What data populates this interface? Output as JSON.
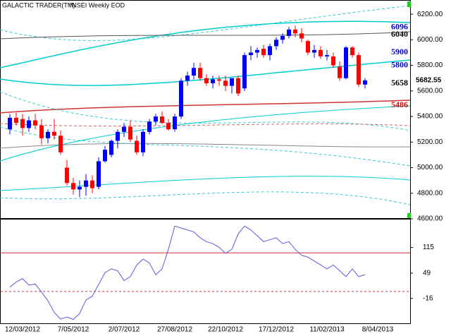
{
  "chart_data": [
    {
      "type": "candlestick",
      "title": "GALACTIC TRADER(TM)",
      "subtitle": "^NSEI Weekly EOD",
      "categories": [
        null,
        null,
        "12/03/2012",
        null,
        null,
        null,
        null,
        null,
        null,
        null,
        "7/05/2012",
        null,
        null,
        null,
        null,
        null,
        null,
        null,
        "2/07/2012",
        null,
        null,
        null,
        null,
        null,
        null,
        null,
        "27/08/2012",
        null,
        null,
        null,
        null,
        null,
        null,
        null,
        "22/10/2012",
        null,
        null,
        null,
        null,
        null,
        null,
        null,
        "17/12/2012",
        null,
        null,
        null,
        null,
        null,
        null,
        null,
        "11/02/2013",
        null,
        null,
        null,
        null,
        null,
        null,
        null,
        "8/04/2013",
        null,
        null,
        null,
        null
      ],
      "open": [
        5300,
        5390,
        5380,
        5310,
        5370,
        5330,
        5230,
        5280,
        5250,
        5000,
        4880,
        4830,
        4850,
        4900,
        4850,
        5050,
        5100,
        5210,
        5280,
        5320,
        5210,
        5120,
        5280,
        5360,
        5400,
        5350,
        5300,
        5400,
        5680,
        5720,
        5780,
        5700,
        5660,
        5690,
        5680,
        5640,
        5700,
        5620,
        5880,
        5900,
        5930,
        5880,
        5950,
        6000,
        6030,
        6080,
        6050,
        5990,
        5900,
        5920,
        5870,
        5870,
        5790,
        5700,
        5940,
        5880,
        5650,
        null,
        null,
        null,
        null,
        null,
        null
      ],
      "high": [
        5420,
        5430,
        5420,
        5400,
        5420,
        5380,
        5300,
        5380,
        5290,
        5060,
        4920,
        4900,
        4950,
        4940,
        5080,
        5170,
        5220,
        5300,
        5350,
        5370,
        5250,
        5300,
        5380,
        5420,
        5440,
        5380,
        5420,
        5700,
        5750,
        5820,
        5820,
        5730,
        5720,
        5720,
        5720,
        5700,
        5720,
        5900,
        5950,
        5940,
        5960,
        5970,
        6020,
        6050,
        6100,
        6110,
        6090,
        6000,
        5960,
        5950,
        5920,
        5900,
        5830,
        5950,
        5950,
        5900,
        5700,
        null,
        null,
        null,
        null,
        null,
        null
      ],
      "low": [
        5260,
        5330,
        5250,
        5280,
        5300,
        5180,
        5190,
        5220,
        5100,
        4860,
        4790,
        4770,
        4780,
        4800,
        4830,
        5040,
        5080,
        5150,
        5240,
        5200,
        5100,
        5090,
        5260,
        5330,
        5340,
        5290,
        5280,
        5380,
        5640,
        5690,
        5680,
        5640,
        5620,
        5640,
        5600,
        5580,
        5560,
        5600,
        5840,
        5860,
        5860,
        5840,
        5920,
        5970,
        6010,
        6020,
        5980,
        5880,
        5860,
        5850,
        5840,
        5780,
        5680,
        5690,
        5860,
        5630,
        5620,
        null,
        null,
        null,
        null,
        null,
        null
      ],
      "close": [
        5390,
        5350,
        5310,
        5370,
        5330,
        5230,
        5280,
        5250,
        5120,
        4880,
        4830,
        4850,
        4900,
        4840,
        5050,
        5140,
        5210,
        5280,
        5320,
        5220,
        5120,
        5280,
        5360,
        5400,
        5350,
        5300,
        5400,
        5680,
        5720,
        5780,
        5700,
        5660,
        5690,
        5680,
        5640,
        5700,
        5580,
        5880,
        5900,
        5920,
        5880,
        5950,
        6000,
        6030,
        6080,
        6050,
        6010,
        5900,
        5920,
        5870,
        5880,
        5800,
        5700,
        5940,
        5880,
        5650,
        5682.55,
        null,
        null,
        null,
        null,
        null,
        null
      ],
      "up_color": "#0000ff",
      "down_color": "#ff0000",
      "ylim": [
        4600,
        6300
      ],
      "yticks": [
        {
          "value": 4600,
          "label": "4600.00"
        },
        {
          "value": 4800,
          "label": "4800.00"
        },
        {
          "value": 5000,
          "label": "5000.00"
        },
        {
          "value": 5200,
          "label": "5200.00"
        },
        {
          "value": 5400,
          "label": "5400.00"
        },
        {
          "value": 5600,
          "label": "5600.00"
        },
        {
          "value": 5800,
          "label": "5800.00"
        },
        {
          "value": 6000,
          "label": "6000.00"
        },
        {
          "value": 6200,
          "label": "6200.00"
        }
      ],
      "level_labels": [
        {
          "value": 6096,
          "color": "#0000cc"
        },
        {
          "value": 6040,
          "color": "#000000"
        },
        {
          "value": 5900,
          "color": "#0000cc"
        },
        {
          "value": 5800,
          "color": "#0000cc"
        },
        {
          "value": 5658,
          "color": "#000000"
        },
        {
          "value": 5486,
          "color": "#dd0000"
        }
      ],
      "last_price": 5682.55
    },
    {
      "type": "line",
      "color": "#5a5ae0",
      "values": [
        13,
        26,
        35,
        18,
        21,
        0,
        -22,
        -52,
        -69,
        -64,
        -70,
        -55,
        -20,
        -10,
        20,
        50,
        60,
        55,
        30,
        40,
        70,
        85,
        75,
        45,
        60,
        110,
        170,
        165,
        160,
        155,
        140,
        130,
        125,
        115,
        100,
        110,
        150,
        170,
        160,
        145,
        130,
        135,
        140,
        125,
        130,
        110,
        95,
        90,
        80,
        70,
        60,
        70,
        55,
        40,
        60,
        40,
        45,
        null,
        null,
        null,
        null,
        null,
        null
      ],
      "ylim": [
        -80,
        185
      ],
      "yticks": [
        115,
        49,
        -16
      ],
      "reference_lines": [
        {
          "value": 101,
          "color": "#dd3030",
          "dashed": false
        },
        {
          "value": 2,
          "color": "#dd3030",
          "dashed": true
        }
      ]
    }
  ]
}
